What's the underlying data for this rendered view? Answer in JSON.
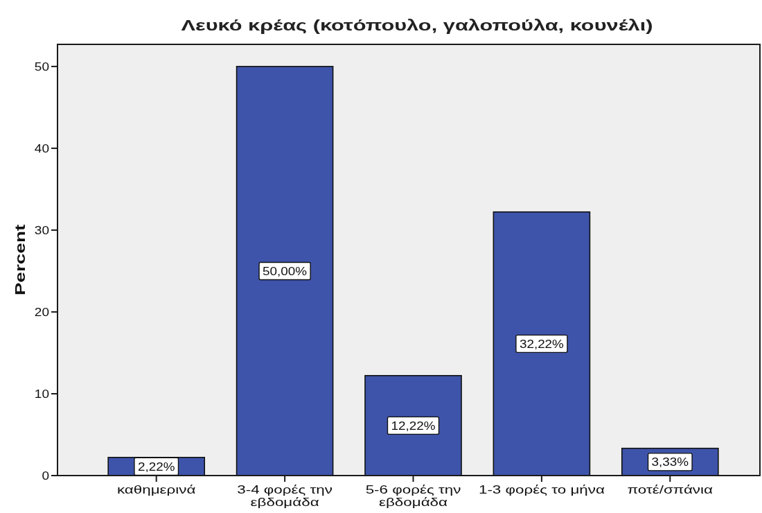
{
  "chart_data": {
    "type": "bar",
    "title": "Λευκό κρέας (κοτόπουλο, γαλοπούλα, κουνέλι)",
    "ylabel": "Percent",
    "categories": [
      "καθημερινά",
      "3-4 φορές την εβδομάδα",
      "5-6 φορές την εβδομάδα",
      "1-3 φορές το μήνα",
      "ποτέ/σπάνια"
    ],
    "values": [
      2.22,
      50.0,
      12.22,
      32.22,
      3.33
    ],
    "color": "#3e54aa",
    "value_labels": [
      "2,22%",
      "50,00%",
      "12,22%",
      "32,22%",
      "3,33%"
    ],
    "ylim": [
      0,
      52.7
    ],
    "yticks": [
      0,
      10,
      20,
      30,
      40,
      50
    ]
  }
}
